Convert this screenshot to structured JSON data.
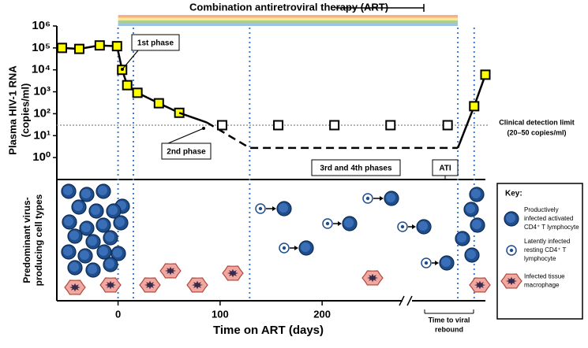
{
  "chart_data": {
    "type": "line",
    "ylabel": [
      "Plasma HIV-1 RNA",
      "(copies/ml)"
    ],
    "xlabel": "Time on ART (days)",
    "log_y": true,
    "xlim": [
      -60,
      360
    ],
    "ylim": [
      0.1,
      1000000
    ],
    "xticks": [
      0,
      100,
      200
    ],
    "yticks": [
      {
        "value": 1,
        "label": "10⁰"
      },
      {
        "value": 10,
        "label": "10¹"
      },
      {
        "value": 100,
        "label": "10²"
      },
      {
        "value": 1000,
        "label": "10³"
      },
      {
        "value": 10000,
        "label": "10⁴"
      },
      {
        "value": 100000,
        "label": "10⁵"
      },
      {
        "value": 1000000,
        "label": "10⁶"
      }
    ],
    "series": [
      {
        "color": "#ffff00",
        "marker": "square",
        "line": "solid",
        "x": [
          -55,
          -38,
          -18,
          -1,
          4,
          9,
          19,
          40,
          60
        ],
        "values": [
          100000,
          90000,
          130000,
          120000,
          10000,
          2000,
          900,
          300,
          110
        ]
      },
      {
        "color": "#000000",
        "marker": "none",
        "line": "solid",
        "x": [
          60,
          87
        ],
        "values": [
          110,
          40
        ]
      },
      {
        "color": "#000000",
        "marker": "none",
        "line": "dashed",
        "x": [
          87,
          129,
          333
        ],
        "values": [
          40,
          2.75,
          2.75
        ]
      },
      {
        "color": "#000000",
        "marker": "none",
        "line": "solid",
        "x": [
          333,
          349
        ],
        "values": [
          2.75,
          220
        ]
      },
      {
        "color": "#ffff00",
        "marker": "square",
        "line": "solid",
        "x": [
          349,
          360
        ],
        "values": [
          220,
          6000
        ]
      },
      {
        "color": "#ffffff",
        "marker": "square",
        "line": "none",
        "x": [
          102,
          157,
          212,
          267,
          323
        ],
        "values": [
          30,
          30,
          30,
          30,
          30
        ]
      }
    ],
    "detection_limit": {
      "value": 30,
      "label": [
        "Clinical detection limit",
        "(20–50 copies/ml)"
      ]
    },
    "vlines": [
      0,
      15,
      129,
      333,
      349
    ],
    "art_bar": {
      "label": "Combination antiretroviral therapy (ART)",
      "colors": [
        "#f4b183",
        "#ffe699",
        "#a9d18e",
        "#9dc3e6"
      ]
    },
    "annotations": [
      "1st phase",
      "2nd phase",
      "3rd and 4th phases",
      "ATI"
    ],
    "rebound_label": [
      "Time to viral",
      "rebound"
    ]
  },
  "cell_panel": {
    "title": [
      "Predominant virus-",
      "producing cell types"
    ],
    "key": {
      "title": "Key:",
      "items": [
        [
          "Productively",
          "infected activated",
          "CD4⁺ T lymphocyte"
        ],
        [
          "Latently infected",
          "resting CD4⁺ T",
          "lymphocyte"
        ],
        [
          "Infected tissue",
          "macrophage"
        ]
      ]
    }
  }
}
